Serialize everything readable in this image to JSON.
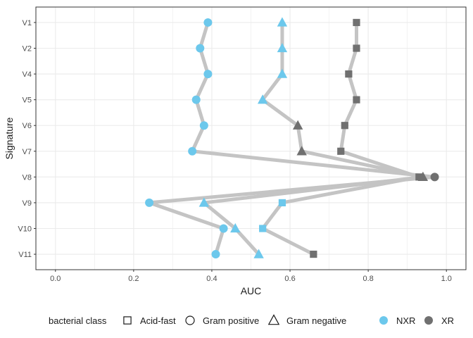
{
  "chart_data": {
    "type": "scatter",
    "xlabel": "AUC",
    "ylabel": "Signature",
    "xlim": [
      -0.05,
      1.05
    ],
    "xticks": [
      0.0,
      0.2,
      0.4,
      0.6,
      0.8,
      1.0
    ],
    "xtick_labels": [
      "0.0",
      "0.2",
      "0.4",
      "0.6",
      "0.8",
      "1.0"
    ],
    "categories": [
      "V1",
      "V2",
      "V4",
      "V5",
      "V6",
      "V7",
      "V8",
      "V9",
      "V10",
      "V11"
    ],
    "grid": true,
    "legend_position": "bottom",
    "colors": {
      "NXR": "#6cc8ec",
      "XR": "#707070",
      "line": "#c4c4c4",
      "panel_border": "#333333",
      "grid": "#ebebeb"
    },
    "series": [
      {
        "class": "Gram positive",
        "shape": "circle",
        "points": [
          {
            "y": "V1",
            "x": 0.39,
            "type": "NXR"
          },
          {
            "y": "V2",
            "x": 0.37,
            "type": "NXR"
          },
          {
            "y": "V4",
            "x": 0.39,
            "type": "NXR"
          },
          {
            "y": "V5",
            "x": 0.36,
            "type": "NXR"
          },
          {
            "y": "V6",
            "x": 0.38,
            "type": "NXR"
          },
          {
            "y": "V7",
            "x": 0.35,
            "type": "NXR"
          },
          {
            "y": "V8",
            "x": 0.97,
            "type": "XR"
          },
          {
            "y": "V9",
            "x": 0.24,
            "type": "NXR"
          },
          {
            "y": "V10",
            "x": 0.43,
            "type": "NXR"
          },
          {
            "y": "V11",
            "x": 0.41,
            "type": "NXR"
          }
        ]
      },
      {
        "class": "Gram negative",
        "shape": "triangle",
        "points": [
          {
            "y": "V1",
            "x": 0.58,
            "type": "NXR"
          },
          {
            "y": "V2",
            "x": 0.58,
            "type": "NXR"
          },
          {
            "y": "V4",
            "x": 0.58,
            "type": "NXR"
          },
          {
            "y": "V5",
            "x": 0.53,
            "type": "NXR"
          },
          {
            "y": "V6",
            "x": 0.62,
            "type": "XR"
          },
          {
            "y": "V7",
            "x": 0.63,
            "type": "XR"
          },
          {
            "y": "V8",
            "x": 0.94,
            "type": "XR"
          },
          {
            "y": "V9",
            "x": 0.38,
            "type": "NXR"
          },
          {
            "y": "V10",
            "x": 0.46,
            "type": "NXR"
          },
          {
            "y": "V11",
            "x": 0.52,
            "type": "NXR"
          }
        ]
      },
      {
        "class": "Acid-fast",
        "shape": "square",
        "points": [
          {
            "y": "V1",
            "x": 0.77,
            "type": "XR"
          },
          {
            "y": "V2",
            "x": 0.77,
            "type": "XR"
          },
          {
            "y": "V4",
            "x": 0.75,
            "type": "XR"
          },
          {
            "y": "V5",
            "x": 0.77,
            "type": "XR"
          },
          {
            "y": "V6",
            "x": 0.74,
            "type": "XR"
          },
          {
            "y": "V7",
            "x": 0.73,
            "type": "XR"
          },
          {
            "y": "V8",
            "x": 0.93,
            "type": "XR"
          },
          {
            "y": "V9",
            "x": 0.58,
            "type": "NXR"
          },
          {
            "y": "V10",
            "x": 0.53,
            "type": "NXR"
          },
          {
            "y": "V11",
            "x": 0.66,
            "type": "XR"
          }
        ]
      }
    ]
  },
  "legend": {
    "shape_title": "bacterial class",
    "shape_items": [
      {
        "label": "Acid-fast",
        "shape": "square"
      },
      {
        "label": "Gram positive",
        "shape": "circle"
      },
      {
        "label": "Gram negative",
        "shape": "triangle"
      }
    ],
    "color_items": [
      {
        "label": "NXR",
        "color_key": "NXR"
      },
      {
        "label": "XR",
        "color_key": "XR"
      }
    ]
  }
}
